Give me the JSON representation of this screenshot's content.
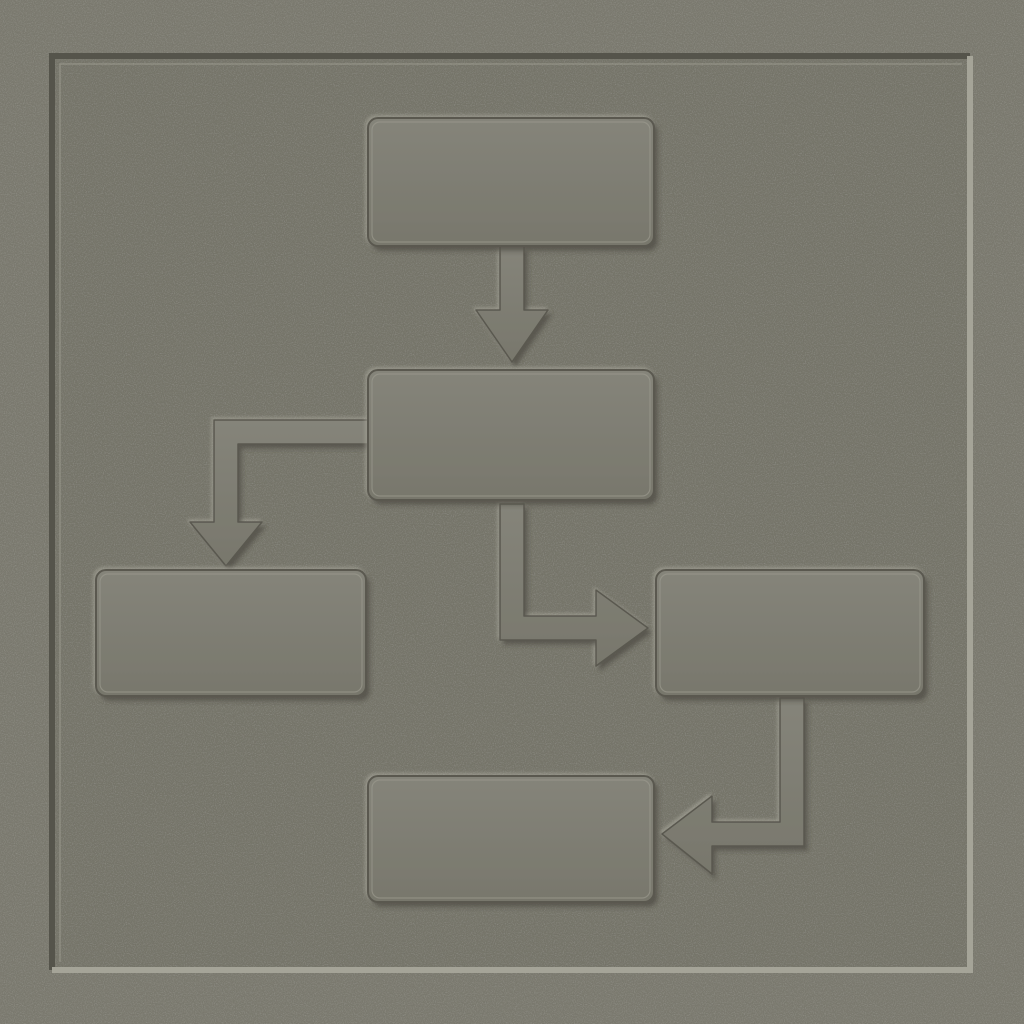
{
  "diagram": {
    "type": "flowchart",
    "style": "embossed-relief",
    "colors": {
      "surface": "#7c7b70",
      "panel": "#77766b",
      "box": "#7f7e73",
      "highlight": "#a3a296",
      "shadow": "#4d4c43",
      "groove": "#5f5e55"
    },
    "nodes": [
      {
        "id": "node-top",
        "text": ""
      },
      {
        "id": "node-middle",
        "text": ""
      },
      {
        "id": "node-left",
        "text": ""
      },
      {
        "id": "node-right",
        "text": ""
      },
      {
        "id": "node-bottom",
        "text": ""
      }
    ],
    "edges": [
      {
        "from": "node-top",
        "to": "node-middle",
        "icon": "arrow-down-icon"
      },
      {
        "from": "node-middle",
        "to": "node-left",
        "icon": "elbow-arrow-icon"
      },
      {
        "from": "node-middle",
        "to": "node-right",
        "icon": "elbow-arrow-icon"
      },
      {
        "from": "node-right",
        "to": "node-bottom",
        "icon": "elbow-arrow-icon"
      }
    ]
  }
}
